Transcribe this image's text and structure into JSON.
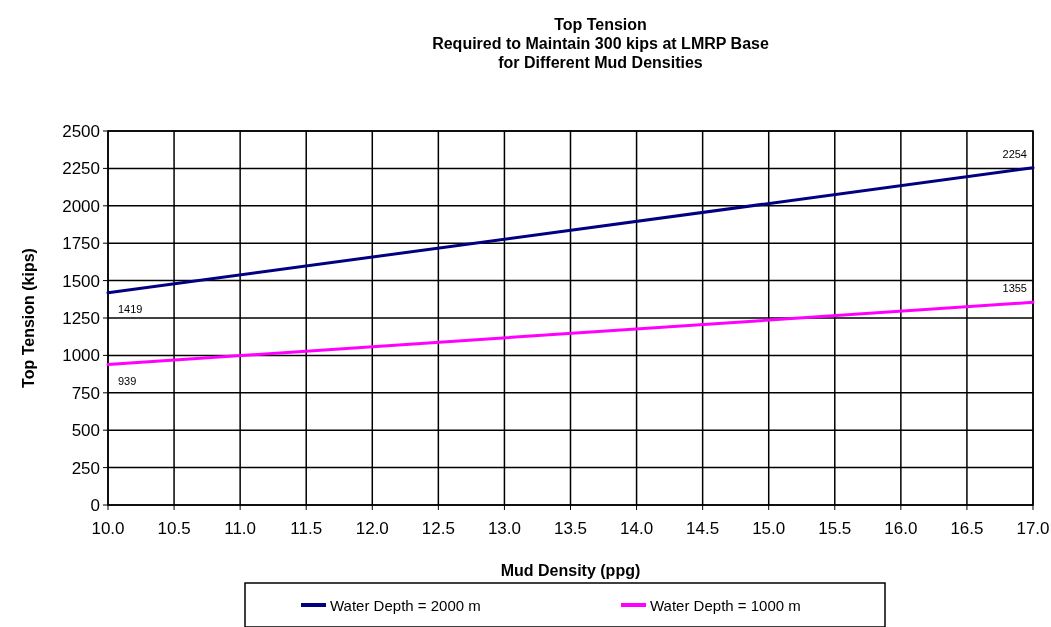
{
  "chart_data": {
    "type": "line",
    "title": "Top Tension\nRequired to Maintain 300 kips at LMRP Base\nfor Different Mud Densities",
    "xlabel": "Mud Density (ppg)",
    "ylabel": "Top Tension (kips)",
    "xlim": [
      10,
      17
    ],
    "xticks": [
      {
        "value": 10,
        "label": "10.0"
      },
      {
        "value": 10.5,
        "label": "10.5"
      },
      {
        "value": 11,
        "label": "11.0"
      },
      {
        "value": 11.5,
        "label": "11.5"
      },
      {
        "value": 12,
        "label": "12.0"
      },
      {
        "value": 12.5,
        "label": "12.5"
      },
      {
        "value": 13,
        "label": "13.0"
      },
      {
        "value": 13.5,
        "label": "13.5"
      },
      {
        "value": 14,
        "label": "14.0"
      },
      {
        "value": 14.5,
        "label": "14.5"
      },
      {
        "value": 15,
        "label": "15.0"
      },
      {
        "value": 15.5,
        "label": "15.5"
      },
      {
        "value": 16,
        "label": "16.0"
      },
      {
        "value": 16.5,
        "label": "16.5"
      },
      {
        "value": 17,
        "label": "17.0"
      }
    ],
    "ylim": [
      0,
      2500
    ],
    "yticks": [
      0,
      250,
      500,
      750,
      1000,
      1250,
      1500,
      1750,
      2000,
      2250,
      2500
    ],
    "x": [
      10,
      17
    ],
    "series": [
      {
        "name": "Water Depth = 2000 m",
        "color": "#000080",
        "values": [
          1419,
          2254
        ],
        "value_labels": [
          "1419",
          "2254"
        ]
      },
      {
        "name": "Water Depth = 1000 m",
        "color": "#ff00ff",
        "values": [
          939,
          1355
        ],
        "value_labels": [
          "939",
          "1355"
        ]
      }
    ],
    "grid": true,
    "legend": "bottom",
    "marker": "none",
    "line_style": "solid"
  }
}
